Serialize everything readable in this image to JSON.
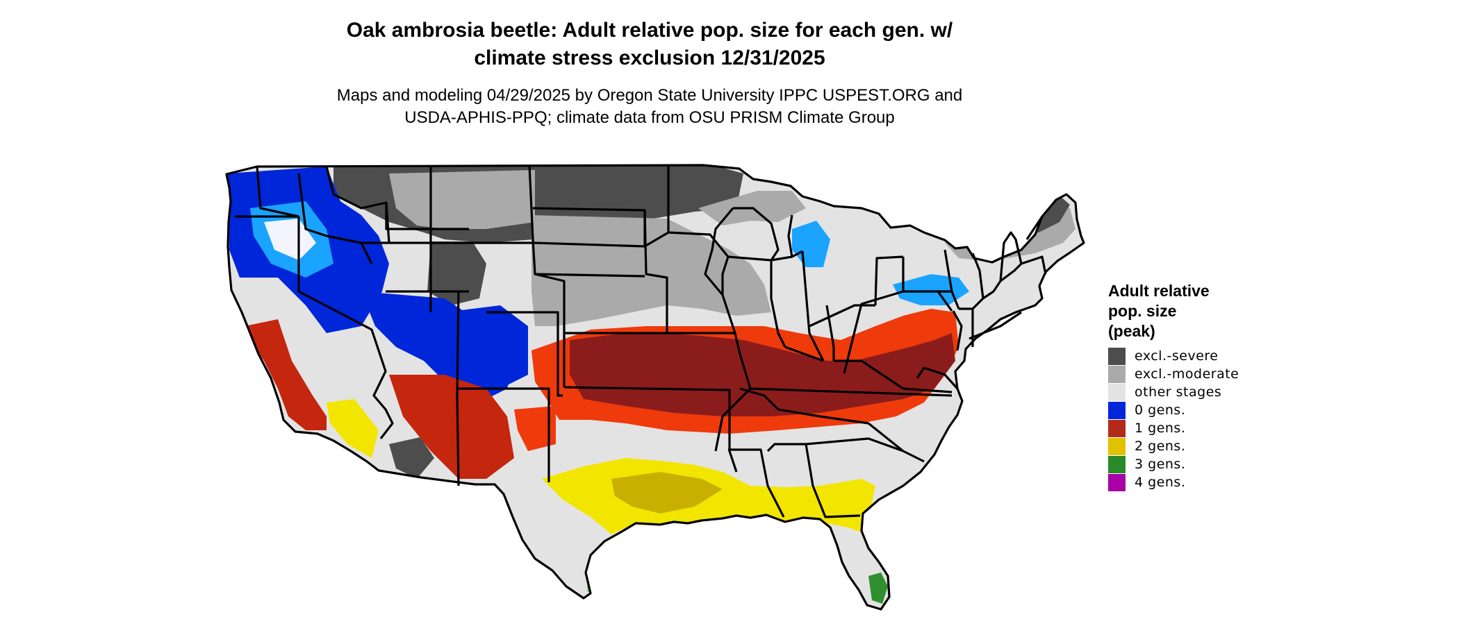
{
  "title_lines": [
    "Oak ambrosia beetle: Adult relative pop. size for each gen. w/",
    "climate stress exclusion 12/31/2025"
  ],
  "subtitle_lines": [
    "Maps and modeling 04/29/2025 by Oregon State University IPPC USPEST.ORG and",
    "USDA-APHIS-PPQ; climate data from OSU PRISM Climate Group"
  ],
  "legend": {
    "title_lines": [
      "Adult relative",
      "pop. size",
      "(peak)"
    ],
    "items": [
      {
        "label": "excl.-severe",
        "color": "#4d4d4d"
      },
      {
        "label": "excl.-moderate",
        "color": "#aaaaaa"
      },
      {
        "label": "other stages",
        "color": "#e3e3e3"
      },
      {
        "label": "0 gens.",
        "color": "#0026d9"
      },
      {
        "label": "1 gens.",
        "color": "#b22a18"
      },
      {
        "label": "2 gens.",
        "color": "#e0c200"
      },
      {
        "label": "3 gens.",
        "color": "#2a8a2a"
      },
      {
        "label": "4 gens.",
        "color": "#a600a6"
      }
    ]
  },
  "region_colors": {
    "base": "#e3e3e3",
    "severe": "#4d4d4d",
    "moderate": "#aaaaaa",
    "gens0_dark": "#0026d9",
    "gens0_light": "#1aa3ff",
    "gens0_white": "#f4f4ff",
    "gens1_dark": "#8b1c1c",
    "gens1_mid": "#c4260e",
    "gens1_orange": "#ef3a0c",
    "gens2_yellow": "#f2e600",
    "gens2_dark": "#c9b000",
    "gens3_green": "#2f8f2f",
    "gens3_light": "#7fdc7f"
  }
}
